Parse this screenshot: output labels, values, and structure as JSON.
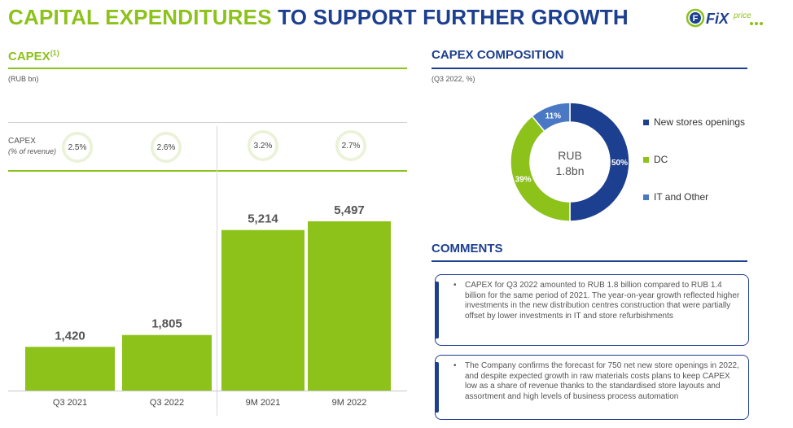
{
  "header": {
    "title_part1": "CAPITAL EXPENDITURES",
    "title_part2": "TO SUPPORT FURTHER GROWTH",
    "logo_text_fix": "FiX",
    "logo_text_price": "price",
    "logo_letter": "F"
  },
  "capex_section": {
    "title": "CAPEX",
    "title_sup": "(1)",
    "unit_note": "(RUB bn)",
    "row_label": "CAPEX",
    "row_sublabel": "(% of revenue)",
    "percents": [
      "2.5%",
      "2.6%",
      "3.2%",
      "2.7%"
    ]
  },
  "composition_section": {
    "title": "CAPEX COMPOSITION",
    "unit_note": "(Q3 2022, %)",
    "center_line1": "RUB",
    "center_line2": "1.8bn"
  },
  "comments_section": {
    "title": "COMMENTS",
    "items": [
      "CAPEX for Q3 2022 amounted to RUB 1.8 billion compared to RUB 1.4 billion for the same period of 2021. The year-on-year growth reflected higher investments in the new distribution centres construction that were partially offset by lower investments in IT and store refurbishments",
      "The Company confirms the forecast for 750 net new store openings in 2022, and despite expected growth in raw materials costs plans to keep CAPEX low as a share of revenue thanks to the standardised store layouts and assortment and high levels of business process automation"
    ]
  },
  "colors": {
    "green": "#8cc21a",
    "navy": "#1d3f8f",
    "light_blue": "#4a78c4"
  },
  "chart_data": [
    {
      "type": "bar",
      "title": "CAPEX",
      "categories": [
        "Q3 2021",
        "Q3 2022",
        "9M 2021",
        "9M 2022"
      ],
      "values": [
        1420,
        1805,
        5214,
        5497
      ],
      "value_labels": [
        "1,420",
        "1,805",
        "5,214",
        "5,497"
      ],
      "ylim": [
        0,
        5497
      ],
      "color": "#8cc21a",
      "grid": false
    },
    {
      "type": "pie",
      "title": "CAPEX COMPOSITION",
      "style": "donut",
      "series": [
        {
          "name": "New stores openings",
          "value": 50,
          "label": "50%",
          "color": "#1d3f8f"
        },
        {
          "name": "DC",
          "value": 39,
          "label": "39%",
          "color": "#8cc21a"
        },
        {
          "name": "IT and Other",
          "value": 11,
          "label": "11%",
          "color": "#4a78c4"
        }
      ],
      "legend": "right"
    }
  ]
}
